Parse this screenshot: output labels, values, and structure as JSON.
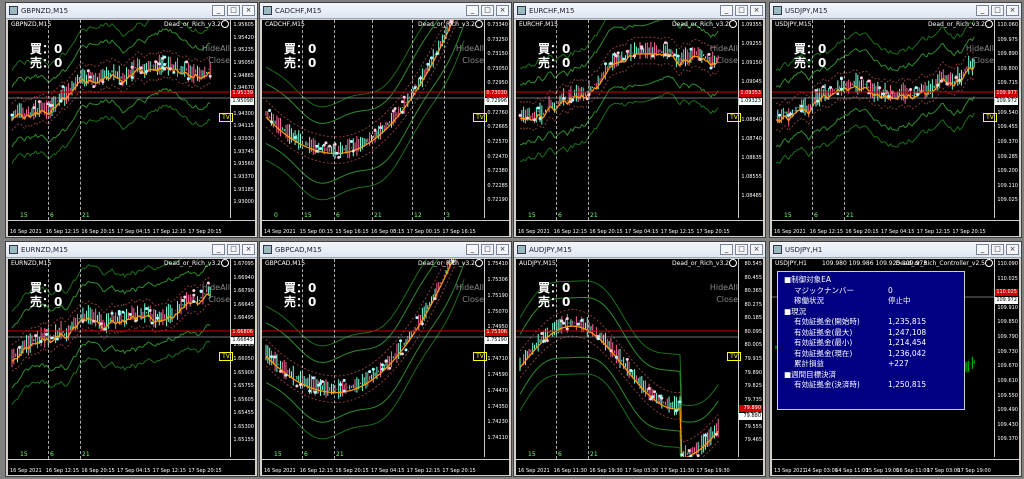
{
  "label_buy": "買：0",
  "label_sell": "売：0",
  "side_hide": "HideAll",
  "side_close": "Close",
  "tv_badge": "TV",
  "windows": [
    {
      "title": "GBPNZD,M15",
      "symbol": "GBPNZD,M15",
      "ea": "Dead_or_Rich_v3.2",
      "prices": [
        "1.95605",
        "1.95420",
        "1.95235",
        "1.95050",
        "1.94865",
        "1.94670",
        "1.94485",
        "1.94300",
        "1.94115",
        "1.93930",
        "1.93745",
        "1.93560",
        "1.93370",
        "1.93185",
        "1.93000"
      ],
      "times": [
        "16 Sep 2021",
        "16 Sep 12:15",
        "16 Sep 20:15",
        "17 Sep 04:15",
        "17 Sep 12:15",
        "17 Sep 20:15"
      ],
      "sessions": [
        "15",
        "6",
        "21"
      ],
      "tag1": "1.95139",
      "tag2": "1.95098"
    },
    {
      "title": "CADCHF,M15",
      "symbol": "CADCHF,M15",
      "ea": "Dead_or_Rich_v3.2",
      "prices": [
        "0.73340",
        "0.73250",
        "0.73150",
        "0.73050",
        "0.72950",
        "0.72860",
        "0.72760",
        "0.72665",
        "0.72570",
        "0.72470",
        "0.72380",
        "0.72285",
        "0.72190"
      ],
      "times": [
        "14 Sep 2021",
        "15 Sep 00:15",
        "15 Sep 16:15",
        "16 Sep 08:15",
        "17 Sep 00:15",
        "17 Sep 16:15"
      ],
      "sessions": [
        "0",
        "15",
        "6",
        "21",
        "12",
        "3"
      ],
      "tag1": "0.73030",
      "tag2": "0.72996"
    },
    {
      "title": "EURCHF,M15",
      "symbol": "EURCHF,M15",
      "ea": "Dead_or_Rich_v3.2",
      "prices": [
        "1.09355",
        "1.09255",
        "1.09150",
        "1.09045",
        "1.08945",
        "1.08840",
        "1.08740",
        "1.08635",
        "1.08555",
        "1.08485"
      ],
      "times": [
        "16 Sep 2021",
        "16 Sep 12:15",
        "16 Sep 20:15",
        "17 Sep 04:15",
        "17 Sep 12:15",
        "17 Sep 20:15"
      ],
      "sessions": [
        "15",
        "6",
        "21"
      ],
      "tag1": "1.09353",
      "tag2": "1.09323"
    },
    {
      "title": "USDJPY,M15",
      "symbol": "USDJPY,M15",
      "ea": "Dead_or_Rich_v3.2",
      "prices": [
        "110.060",
        "109.975",
        "109.890",
        "109.800",
        "109.715",
        "109.630",
        "109.540",
        "109.455",
        "109.370",
        "109.285",
        "109.200",
        "109.110",
        "109.025"
      ],
      "times": [
        "16 Sep 2021",
        "16 Sep 12:15",
        "16 Sep 20:15",
        "17 Sep 04:15",
        "17 Sep 12:15",
        "17 Sep 20:15"
      ],
      "sessions": [
        "15",
        "6",
        "21"
      ],
      "tag1": "109.977",
      "tag2": "109.972"
    },
    {
      "title": "EURNZD,M15",
      "symbol": "EURNZD,M15",
      "ea": "Dead_or_Rich_v3.2",
      "prices": [
        "1.67095",
        "1.66940",
        "1.66790",
        "1.66645",
        "1.66495",
        "1.66345",
        "1.66195",
        "1.66050",
        "1.65900",
        "1.65755",
        "1.65605",
        "1.65455",
        "1.65300",
        "1.65155"
      ],
      "times": [
        "16 Sep 2021",
        "16 Sep 12:15",
        "16 Sep 20:15",
        "17 Sep 04:15",
        "17 Sep 12:15",
        "17 Sep 20:15"
      ],
      "sessions": [
        "15",
        "6",
        "21"
      ],
      "tag1": "1.66806",
      "tag2": "1.66645"
    },
    {
      "title": "GBPCAD,M15",
      "symbol": "GBPCAD,M15",
      "ea": "Dead_or_Rich_v3.2",
      "prices": [
        "1.75410",
        "1.75306",
        "1.75190",
        "1.75070",
        "1.74950",
        "1.74830",
        "1.74710",
        "1.74590",
        "1.74470",
        "1.74350",
        "1.74230",
        "1.74110"
      ],
      "times": [
        "16 Sep 2021",
        "16 Sep 12:15",
        "16 Sep 20:15",
        "17 Sep 04:15",
        "17 Sep 12:15",
        "17 Sep 20:15"
      ],
      "sessions": [
        "15",
        "6",
        "21"
      ],
      "tag1": "1.75306",
      "tag2": "1.75190"
    },
    {
      "title": "AUDJPY,M15",
      "symbol": "AUDJPY,M15",
      "ea": "Dead_or_Rich_v3.2",
      "prices": [
        "80.545",
        "80.455",
        "80.365",
        "80.275",
        "80.185",
        "80.095",
        "80.005",
        "79.915",
        "79.890",
        "79.825",
        "79.735",
        "79.645",
        "79.555",
        "79.465"
      ],
      "times": [
        "16 Sep 2021",
        "16 Sep 11:30",
        "16 Sep 19:30",
        "17 Sep 03:30",
        "17 Sep 11:30",
        "17 Sep 19:30"
      ],
      "sessions": [
        "15",
        "6",
        "21"
      ],
      "tag1": "79.890",
      "tag2": "79.880"
    },
    {
      "title": "USDJPY,H1",
      "symbol": "USDJPY,H1",
      "ea": "Dead_or_Rich_Controller_v2.5",
      "ohlc": "109.980 109.986 109.925 109.973",
      "prices": [
        "110.090",
        "110.025",
        "109.972",
        "109.910",
        "109.850",
        "109.790",
        "109.730",
        "109.670",
        "109.610",
        "109.550",
        "109.490",
        "109.430",
        "109.370"
      ],
      "times": [
        "13 Sep 2021",
        "14 Sep 03:00",
        "14 Sep 11:00",
        "15 Sep 19:00",
        "16 Sep 11:00",
        "17 Sep 03:00",
        "17 Sep 19:00"
      ],
      "sessions": [],
      "tag1": "109.972",
      "tag2": "110.025"
    }
  ],
  "panel": {
    "rows": [
      {
        "k": "■制御対象EA",
        "v": ""
      },
      {
        "k": "マジックナンバー",
        "v": "0",
        "ind": true
      },
      {
        "k": "稼働状況",
        "v": "停止中",
        "ind": true
      },
      {
        "k": "■現況",
        "v": ""
      },
      {
        "k": "有効証拠金(開始時)",
        "v": "1,235,815",
        "ind": true
      },
      {
        "k": "有効証拠金(最大)",
        "v": "1,247,108",
        "ind": true
      },
      {
        "k": "有効証拠金(最小)",
        "v": "1,214,454",
        "ind": true
      },
      {
        "k": "有効証拠金(現在)",
        "v": "1,236,042",
        "ind": true
      },
      {
        "k": "累計損益",
        "v": "+227",
        "ind": true
      },
      {
        "k": "■週間目標決済",
        "v": ""
      },
      {
        "k": "有効証拠金(決済時)",
        "v": "1,250,815",
        "ind": true
      }
    ]
  }
}
